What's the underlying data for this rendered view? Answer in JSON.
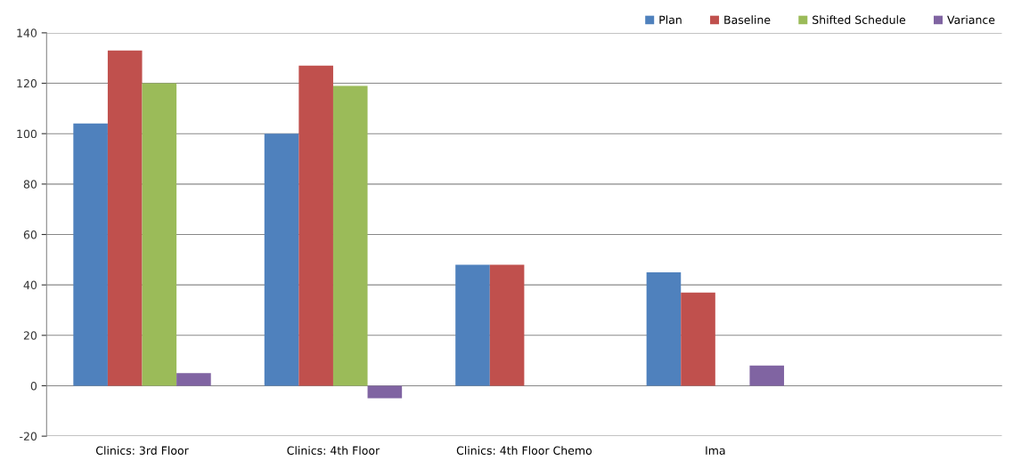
{
  "chart_data": {
    "type": "bar",
    "categories": [
      "Clinics: 3rd Floor",
      "Clinics: 4th Floor",
      "Clinics: 4th Floor Chemo",
      "Ima",
      null
    ],
    "series": [
      {
        "name": "Plan",
        "color": "#4f81bd",
        "values": [
          104,
          100,
          48,
          45,
          null
        ]
      },
      {
        "name": "Baseline",
        "color": "#c0504d",
        "values": [
          133,
          127,
          48,
          37,
          null
        ]
      },
      {
        "name": "Shifted Schedule",
        "color": "#9bbb59",
        "values": [
          120,
          119,
          0,
          0,
          null
        ]
      },
      {
        "name": "Variance",
        "color": "#8064a2",
        "values": [
          5,
          -5,
          0,
          8,
          null
        ]
      }
    ],
    "ylim": [
      -20,
      140
    ],
    "yticks": [
      -20,
      0,
      20,
      40,
      60,
      80,
      100,
      120,
      140
    ],
    "grid": "y",
    "legend": "top right"
  }
}
